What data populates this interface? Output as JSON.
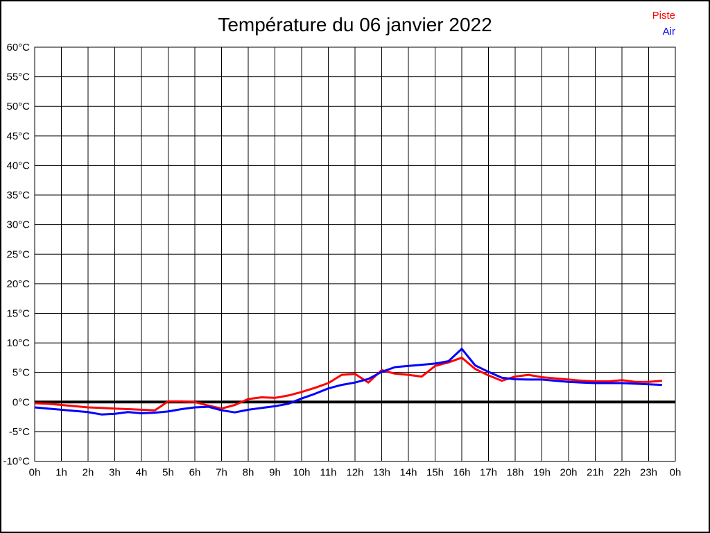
{
  "title": "Température du 06 janvier 2022",
  "legend": {
    "items": [
      {
        "label": "Piste",
        "color": "#ff0000"
      },
      {
        "label": "Air",
        "color": "#0000ff"
      }
    ]
  },
  "chart_data": {
    "type": "line",
    "title": "Température du 06 janvier 2022",
    "xlabel": "",
    "ylabel": "",
    "xlim": [
      0,
      24
    ],
    "ylim": [
      -10,
      60
    ],
    "y_step": 5,
    "x_step_gridlines": 1,
    "grid": true,
    "zero_line": true,
    "legend_position": "top-right",
    "x_tick_labels": [
      "0h",
      "1h",
      "2h",
      "3h",
      "4h",
      "5h",
      "6h",
      "7h",
      "8h",
      "9h",
      "10h",
      "11h",
      "12h",
      "13h",
      "14h",
      "15h",
      "16h",
      "17h",
      "18h",
      "19h",
      "20h",
      "21h",
      "22h",
      "23h",
      "0h"
    ],
    "y_tick_labels": [
      "60°C",
      "55°C",
      "50°C",
      "45°C",
      "40°C",
      "35°C",
      "30°C",
      "25°C",
      "20°C",
      "15°C",
      "10°C",
      "5°C",
      "0°C",
      "-5°C",
      "-10°C"
    ],
    "x": [
      0,
      0.5,
      1,
      1.5,
      2,
      2.5,
      3,
      3.5,
      4,
      4.5,
      5,
      5.5,
      6,
      6.5,
      7,
      7.5,
      8,
      8.5,
      9,
      9.5,
      10,
      10.5,
      11,
      11.5,
      12,
      12.5,
      13,
      13.5,
      14,
      14.5,
      15,
      15.5,
      16,
      16.5,
      17,
      17.5,
      18,
      18.5,
      19,
      19.5,
      20,
      20.5,
      21,
      21.5,
      22,
      22.5,
      23,
      23.5
    ],
    "series": [
      {
        "name": "Piste",
        "color": "#ff0000",
        "values": [
          -0.2,
          -0.3,
          -0.5,
          -0.7,
          -0.9,
          -1.0,
          -1.1,
          -1.2,
          -1.3,
          -1.4,
          0.1,
          0.1,
          0.0,
          -0.6,
          -1.1,
          -0.5,
          0.5,
          0.8,
          0.7,
          1.1,
          1.7,
          2.4,
          3.2,
          4.6,
          4.75,
          3.3,
          5.4,
          4.8,
          4.6,
          4.3,
          6.1,
          6.7,
          7.5,
          5.6,
          4.5,
          3.6,
          4.3,
          4.6,
          4.2,
          4.0,
          3.8,
          3.6,
          3.5,
          3.5,
          3.7,
          3.4,
          3.4,
          3.6
        ]
      },
      {
        "name": "Air",
        "color": "#0000ff",
        "values": [
          -0.9,
          -1.1,
          -1.3,
          -1.5,
          -1.7,
          -2.1,
          -2.0,
          -1.7,
          -1.9,
          -1.8,
          -1.6,
          -1.2,
          -0.9,
          -0.8,
          -1.4,
          -1.75,
          -1.3,
          -1.0,
          -0.7,
          -0.3,
          0.6,
          1.4,
          2.3,
          2.9,
          3.3,
          3.9,
          5.1,
          5.9,
          6.1,
          6.3,
          6.5,
          6.9,
          9.0,
          6.2,
          5.1,
          4.1,
          3.85,
          3.8,
          3.8,
          3.6,
          3.4,
          3.3,
          3.2,
          3.2,
          3.2,
          3.1,
          3.0,
          2.9
        ]
      }
    ]
  }
}
